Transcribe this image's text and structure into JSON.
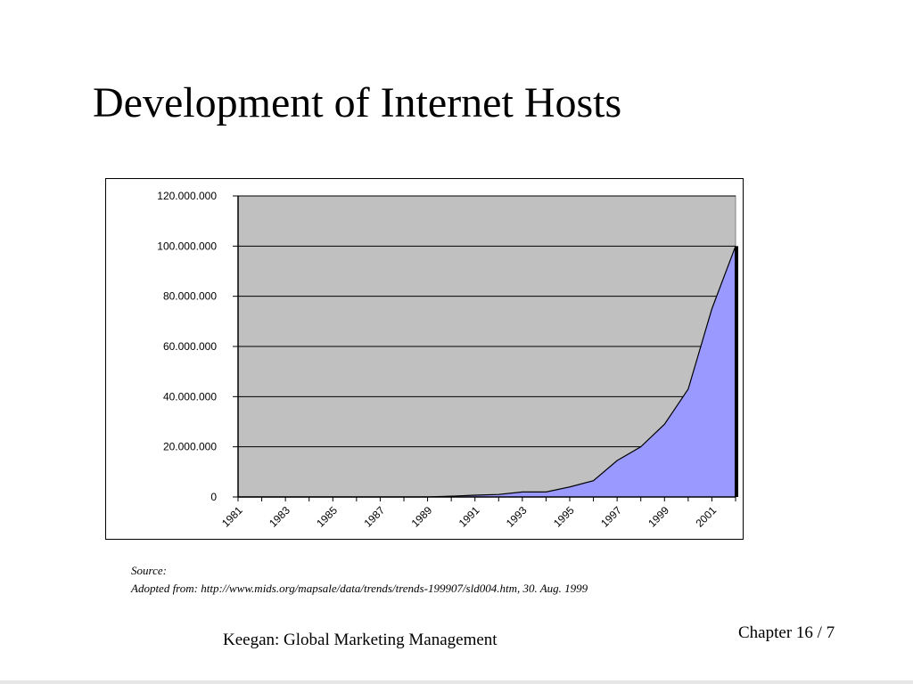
{
  "slide": {
    "title": "Development of Internet Hosts",
    "source_label": "Source:",
    "source_text": "Adopted from: http://www.mids.org/mapsale/data/trends/trends-199907/sld004.htm, 30. Aug. 1999",
    "footer_center": "Keegan: Global Marketing Management",
    "footer_right": "Chapter 16 / 7"
  },
  "chart_data": {
    "type": "area",
    "title": "",
    "xlabel": "",
    "ylabel": "",
    "x": [
      1981,
      1982,
      1983,
      1984,
      1985,
      1986,
      1987,
      1988,
      1989,
      1990,
      1991,
      1992,
      1993,
      1994,
      1995,
      1996,
      1997,
      1998,
      1999,
      2000,
      2001,
      2002
    ],
    "values": [
      0,
      0,
      0,
      0,
      0,
      0,
      0,
      0,
      0,
      300000,
      700000,
      1000000,
      2000000,
      2000000,
      4000000,
      6500000,
      14500000,
      20000000,
      29000000,
      43000000,
      75000000,
      100000000
    ],
    "xtick_labels": [
      "1981",
      "1983",
      "1985",
      "1987",
      "1989",
      "1991",
      "1993",
      "1995",
      "1997",
      "1999",
      "2001"
    ],
    "ytick_labels": [
      "0",
      "20.000.000",
      "40.000.000",
      "60.000.000",
      "80.000.000",
      "100.000.000",
      "120.000.000"
    ],
    "yticks": [
      0,
      20000000,
      40000000,
      60000000,
      80000000,
      100000000,
      120000000
    ],
    "ylim": [
      0,
      120000000
    ],
    "grid": true,
    "colors": {
      "plot_background": "#c0c0c0",
      "area_fill": "#9999ff",
      "line": "#000000",
      "gridline": "#000000"
    }
  }
}
